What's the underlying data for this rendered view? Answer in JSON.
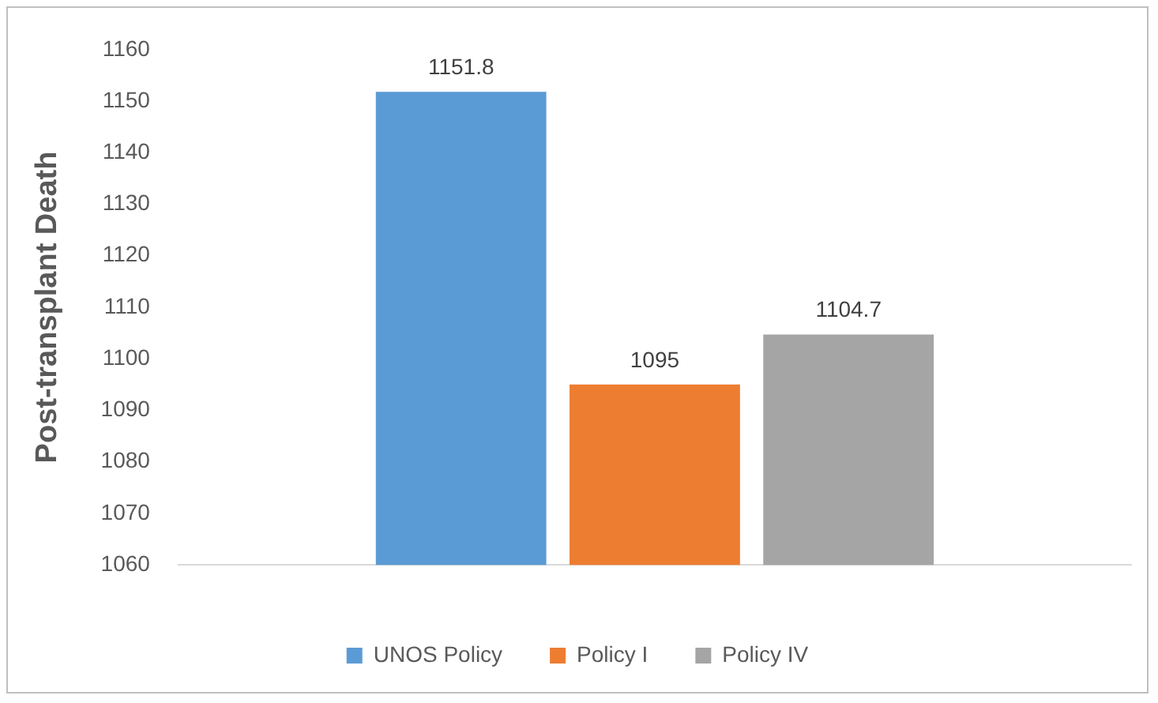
{
  "chart_data": {
    "type": "bar",
    "ylabel": "Post-transplant Death",
    "categories": [
      null
    ],
    "series": [
      {
        "name": "UNOS Policy",
        "color": "#5b9bd5",
        "values": [
          1151.8
        ]
      },
      {
        "name": "Policy I",
        "color": "#ed7d31",
        "values": [
          1095
        ]
      },
      {
        "name": "Policy IV",
        "color": "#a5a5a5",
        "values": [
          1104.7
        ]
      }
    ],
    "ylim": [
      1060,
      1160
    ],
    "yticks": [
      1060,
      1070,
      1080,
      1090,
      1100,
      1110,
      1120,
      1130,
      1140,
      1150,
      1160
    ],
    "grid": false,
    "legend": "bottom",
    "data_labels": true
  }
}
